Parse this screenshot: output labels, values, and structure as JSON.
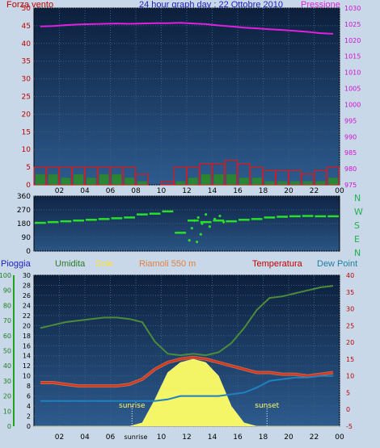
{
  "header": {
    "left": "Forza vento",
    "center": "24 hour graph day : 22 Ottobre 2010",
    "right": "Pressione"
  },
  "bottom_labels": {
    "pioggia": "Pioggia",
    "umidita": "Umidita",
    "sole": "Sole",
    "site": "Riamoli 550 m",
    "temperatura": "Temperatura",
    "dewpoint": "Dew Point",
    "sunrise": "sunrise",
    "sunset": "sunset"
  },
  "compass": [
    "N",
    "W",
    "S",
    "E",
    "N"
  ],
  "colors": {
    "bg": "#c8d8e8",
    "plot_dark": "#10264a",
    "plot_light": "#2d5b8e",
    "pressure": "#e020e0",
    "wind_gust": "#e01818",
    "wind_avg": "#2a8a2a",
    "direction": "#28e028",
    "humidity": "#4a8c3a",
    "solar": "#ffff66",
    "temperature": "#e03020",
    "dewpoint": "#2080c0",
    "title_blue": "#2020c0",
    "title_red": "#c00000"
  },
  "chart_data": [
    {
      "type": "line",
      "x": [
        1,
        2,
        3,
        4,
        5,
        6,
        7,
        8,
        9,
        10,
        11,
        12,
        13,
        14,
        15,
        16,
        17,
        18,
        19,
        20,
        21,
        22,
        23,
        24
      ],
      "xticks": [
        "02",
        "04",
        "06",
        "08",
        "10",
        "12",
        "14",
        "16",
        "18",
        "20",
        "22",
        "00"
      ],
      "series": [
        {
          "name": "Pressione",
          "axis": "right",
          "values": [
            1024.3,
            1024.4,
            1024.7,
            1024.9,
            1025.0,
            1025.1,
            1025.2,
            1025.1,
            1025.2,
            1025.3,
            1025.3,
            1025.4,
            1025.2,
            1025.0,
            1024.6,
            1024.3,
            1023.9,
            1023.7,
            1023.4,
            1023.2,
            1022.9,
            1022.6,
            1022.2,
            1022.0
          ]
        },
        {
          "name": "Forza vento (raffica)",
          "axis": "left",
          "values": [
            5,
            5,
            5,
            5,
            5,
            5,
            5,
            5,
            3,
            0,
            1,
            5,
            5,
            6,
            6,
            7,
            6,
            5,
            4,
            4,
            4,
            3,
            4,
            5
          ]
        },
        {
          "name": "Forza vento (media)",
          "axis": "left",
          "values": [
            3,
            3,
            2,
            3,
            2,
            3,
            3,
            2,
            1,
            0,
            0,
            1,
            2,
            3,
            3,
            3,
            2,
            2,
            1,
            1,
            1,
            1,
            1,
            2
          ]
        }
      ],
      "yleft": {
        "ylim": [
          0,
          50
        ],
        "ticks": [
          0,
          5,
          10,
          15,
          20,
          25,
          30,
          35,
          40,
          45,
          50
        ]
      },
      "yright": {
        "ylim": [
          975,
          1030
        ],
        "ticks": [
          975,
          980,
          985,
          990,
          995,
          1000,
          1005,
          1010,
          1015,
          1020,
          1025,
          1030
        ]
      }
    },
    {
      "type": "scatter",
      "x": [
        1,
        2,
        3,
        4,
        5,
        6,
        7,
        8,
        9,
        10,
        11,
        12,
        13,
        14,
        15,
        16,
        17,
        18,
        19,
        20,
        21,
        22,
        23,
        24
      ],
      "series": [
        {
          "name": "Direzione",
          "values": [
            185,
            190,
            195,
            200,
            205,
            210,
            215,
            220,
            240,
            245,
            260,
            120,
            200,
            190,
            200,
            195,
            205,
            210,
            220,
            225,
            228,
            230,
            228,
            228
          ]
        }
      ],
      "ylim": [
        0,
        360
      ],
      "ticks": [
        0,
        90,
        180,
        270,
        360
      ]
    },
    {
      "type": "line",
      "x": [
        1,
        2,
        3,
        4,
        5,
        6,
        7,
        8,
        9,
        10,
        11,
        12,
        13,
        14,
        15,
        16,
        17,
        18,
        19,
        20,
        21,
        22,
        23,
        24
      ],
      "xticks": [
        "02",
        "04",
        "06",
        "sunrise",
        "10",
        "12",
        "14",
        "16",
        "18",
        "20",
        "22",
        "00"
      ],
      "series": [
        {
          "name": "Umidita",
          "axis": "humidity",
          "values": [
            65,
            67,
            69,
            70,
            71,
            72,
            72,
            71,
            69,
            56,
            48,
            47,
            48,
            47,
            49,
            55,
            65,
            77,
            85,
            86,
            88,
            90,
            92,
            93
          ]
        },
        {
          "name": "Sole",
          "axis": "temperature",
          "values": [
            -5,
            -5,
            -5,
            -5,
            -5,
            -5,
            -5,
            -5,
            -4,
            3,
            11,
            14,
            15,
            14,
            10,
            1,
            -4,
            -5,
            -5,
            -5,
            -5,
            -5,
            -5,
            -5
          ]
        },
        {
          "name": "Temperatura",
          "axis": "temperature",
          "values": [
            8,
            8,
            7.5,
            7,
            7,
            7,
            7,
            7.5,
            9,
            12,
            14,
            15,
            15.5,
            15,
            14,
            13,
            12,
            11,
            11,
            10.5,
            10.5,
            10,
            10.5,
            11
          ]
        },
        {
          "name": "Dew Point",
          "axis": "temperature",
          "values": [
            2.5,
            2.5,
            2.5,
            2.5,
            2.5,
            2.5,
            2.5,
            2.5,
            2.5,
            2.5,
            3,
            4,
            4,
            4,
            4,
            4.5,
            5,
            6.5,
            8.5,
            9,
            9.5,
            9.5,
            10,
            10
          ]
        }
      ],
      "y_rain": {
        "ylim": [
          0,
          100
        ],
        "ticks": [
          0,
          10,
          20,
          30,
          40,
          50,
          60,
          70,
          80,
          90,
          100
        ]
      },
      "y_humidity": {
        "ylim": [
          0,
          30
        ],
        "ticks": [
          0,
          2,
          4,
          6,
          8,
          10,
          12,
          14,
          16,
          18,
          20,
          22,
          24,
          26,
          28,
          30
        ]
      },
      "y_temperature": {
        "ylim": [
          -5,
          40
        ],
        "ticks": [
          -5,
          0,
          5,
          10,
          15,
          20,
          25,
          30,
          35,
          40
        ]
      },
      "sunrise_hour": 7.7,
      "sunset_hour": 18.3
    }
  ]
}
